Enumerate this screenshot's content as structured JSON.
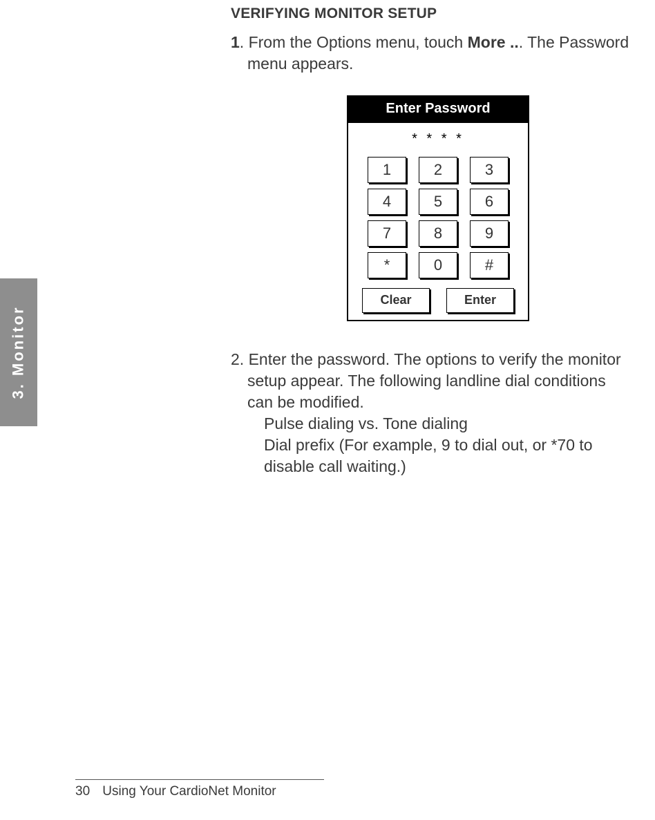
{
  "heading": "VERIFYING MONITOR SETUP",
  "step1": {
    "num": "1",
    "lead": ". From the Options menu, touch ",
    "bold": "More ..",
    "tail": ". The Password",
    "line2": "menu appears."
  },
  "keypad": {
    "title": "Enter Password",
    "mask": "* * * *",
    "keys": [
      "1",
      "2",
      "3",
      "4",
      "5",
      "6",
      "7",
      "8",
      "9",
      "*",
      "0",
      "#"
    ],
    "clear": "Clear",
    "enter": "Enter",
    "colors": {
      "title_bg": "#000000",
      "title_fg": "#ffffff",
      "border": "#000000",
      "key_bg": "#ffffff"
    }
  },
  "step2": {
    "num_and_first": "2. Enter the password. The options to verify the monitor",
    "l2": "setup appear. The following landline dial conditions",
    "l3": "can be modified.",
    "sub1": "Pulse dialing vs. Tone dialing",
    "sub2a": "Dial prefix (For example, 9 to dial out, or *70 to",
    "sub2b": "disable call waiting.)"
  },
  "sidetab": "3.  Monitor",
  "footer": {
    "page": "30",
    "title": "Using Your CardioNet Monitor"
  }
}
